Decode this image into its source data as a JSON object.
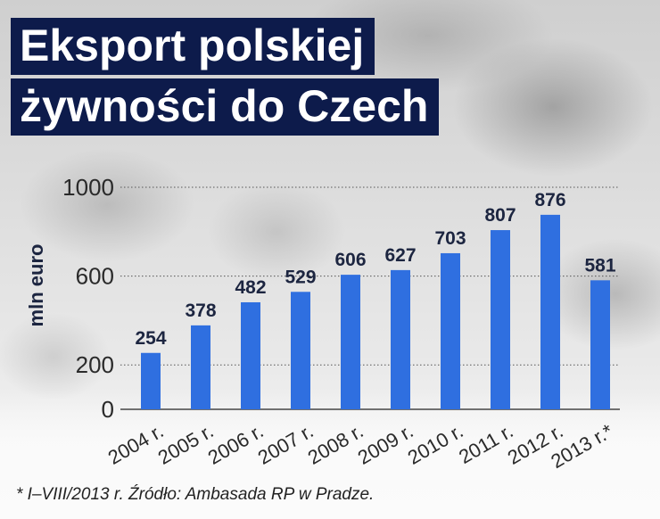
{
  "title_line1": "Eksport polskiej",
  "title_line2": "żywności do Czech",
  "footnote": "* I–VIII/2013 r. Źródło: Ambasada RP w Pradze.",
  "colors": {
    "bar": "#2f6fe0",
    "title_bg": "#0d1b4b",
    "title_text": "#ffffff",
    "label_text": "#1c2540",
    "axis_text": "#2a2a2a",
    "grid": "#555555"
  },
  "chart_data": {
    "type": "bar",
    "categories": [
      "2004 r.",
      "2005 r.",
      "2006 r.",
      "2007 r.",
      "2008 r.",
      "2009 r.",
      "2010 r.",
      "2011 r.",
      "2012 r.",
      "2013 r.*"
    ],
    "values": [
      254,
      378,
      482,
      529,
      606,
      627,
      703,
      807,
      876,
      581
    ],
    "value_labels": [
      "254",
      "378",
      "482",
      "529",
      "606",
      "627",
      "703",
      "807",
      "876",
      "581"
    ],
    "ylabel": "mln euro",
    "yticks": [
      0,
      200,
      600,
      1000
    ],
    "ylim": [
      0,
      1000
    ],
    "grid": "dotted horizontal"
  }
}
